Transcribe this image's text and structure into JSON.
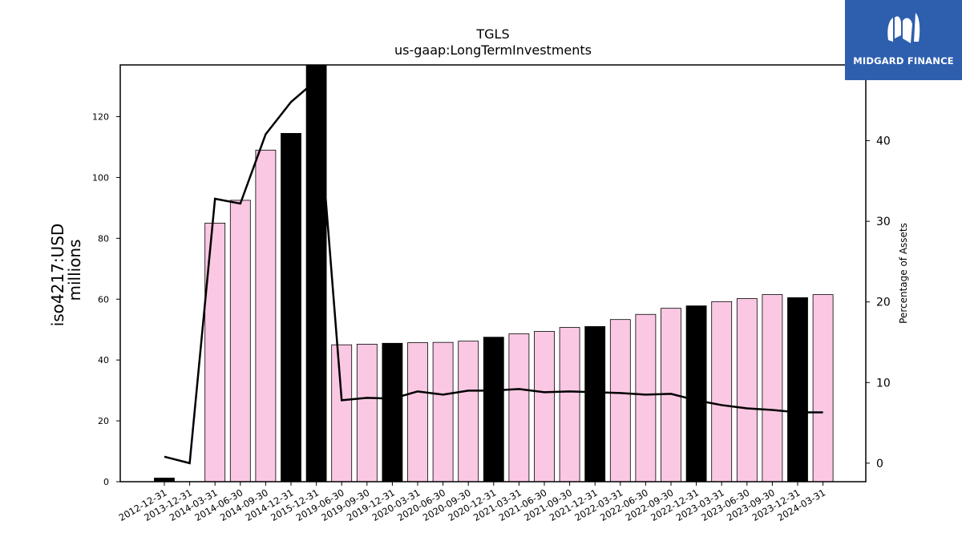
{
  "chart_data": {
    "type": "bar",
    "title": "TGLS",
    "subtitle": "us-gaap:LongTermInvestments",
    "ylabel_left_line1": "iso4217:USD",
    "ylabel_left_line2": "millions",
    "ylabel_right": "Percentage of Assets",
    "categories": [
      "2012-12-31",
      "2013-12-31",
      "2014-03-31",
      "2014-06-30",
      "2014-09-30",
      "2014-12-31",
      "2015-12-31",
      "2019-06-30",
      "2019-09-30",
      "2019-12-31",
      "2020-03-31",
      "2020-06-30",
      "2020-09-30",
      "2020-12-31",
      "2021-03-31",
      "2021-06-30",
      "2021-09-30",
      "2021-12-31",
      "2022-03-31",
      "2022-06-30",
      "2022-09-30",
      "2022-12-31",
      "2023-03-31",
      "2023-06-30",
      "2023-09-30",
      "2023-12-31",
      "2024-03-31"
    ],
    "bar_values": [
      1.2,
      0,
      85,
      92.5,
      109,
      114.5,
      137,
      45,
      45.2,
      45.5,
      45.7,
      45.8,
      46.2,
      47.5,
      48.6,
      49.4,
      50.7,
      51,
      53.3,
      55,
      57,
      57.8,
      59.2,
      60.2,
      61.5,
      60.5,
      61.5
    ],
    "bar_is_annual": [
      true,
      true,
      false,
      false,
      false,
      true,
      true,
      false,
      false,
      true,
      false,
      false,
      false,
      true,
      false,
      false,
      false,
      true,
      false,
      false,
      false,
      true,
      false,
      false,
      false,
      true,
      false
    ],
    "line_values": [
      0.8,
      0,
      32.8,
      32.2,
      40.8,
      44.8,
      47.5,
      7.8,
      8.1,
      8,
      8.9,
      8.5,
      9,
      9,
      9.2,
      8.8,
      8.9,
      8.8,
      8.7,
      8.5,
      8.6,
      7.8,
      7.2,
      6.8,
      6.6,
      6.3,
      6.3
    ],
    "ylim_left": [
      0,
      137
    ],
    "yticks_left": [
      0,
      20,
      40,
      60,
      80,
      100,
      120
    ],
    "ylim_right": [
      -2.3,
      49.4
    ],
    "yticks_right": [
      0,
      10,
      20,
      30,
      40
    ],
    "colors": {
      "annual_bar": "#000000",
      "quarter_bar": "#fbc8e3",
      "line": "#000000",
      "bar_edge": "#000000"
    }
  },
  "logo": {
    "text": "MIDGARD FINANCE",
    "background": "#2d5fae"
  }
}
